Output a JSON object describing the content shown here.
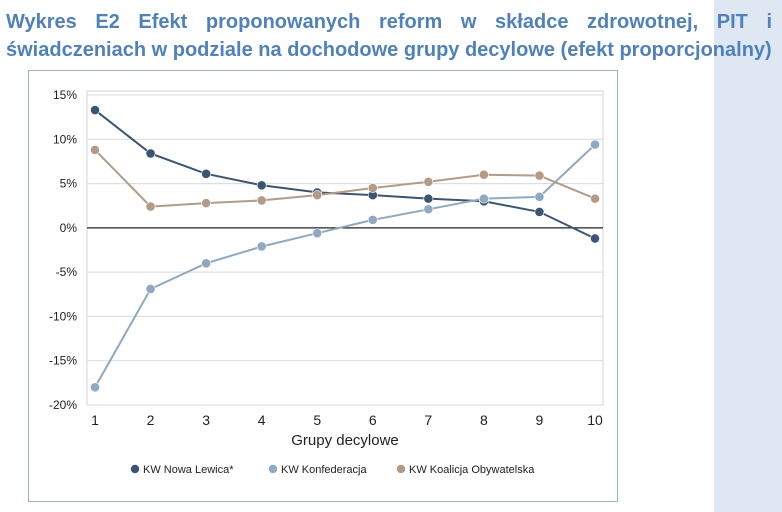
{
  "title": {
    "line1": "Wykres E2 Efekt proponowanych reform w składce zdrowotnej, PIT i",
    "line2": "świadczeniach w podziale na dochodowe grupy decylowe (efekt proporcjonalny)"
  },
  "colors": {
    "title": "#4f81bd",
    "background_band": "#dfe8f2",
    "frame_border": "#9bb1c8"
  },
  "chart_data": {
    "type": "line",
    "title": "",
    "xlabel": "Grupy decylowe",
    "ylabel": "",
    "x": [
      1,
      2,
      3,
      4,
      5,
      6,
      7,
      8,
      9,
      10
    ],
    "x_tick_labels": [
      "1",
      "2",
      "3",
      "4",
      "5",
      "6",
      "7",
      "8",
      "9",
      "10"
    ],
    "ylim": [
      -20,
      15
    ],
    "y_ticks": [
      15,
      10,
      5,
      0,
      -5,
      -10,
      -15,
      -20
    ],
    "y_tick_labels": [
      "15%",
      "10%",
      "5%",
      "0%",
      "-5%",
      "-10%",
      "-15%",
      "-20%"
    ],
    "grid": "horizontal",
    "legend_position": "bottom",
    "series": [
      {
        "name": "KW Nowa Lewica*",
        "color": "#3a5573",
        "values": [
          13.3,
          8.4,
          6.1,
          4.8,
          4.0,
          3.7,
          3.3,
          3.0,
          1.8,
          -1.2
        ]
      },
      {
        "name": "KW Konfederacja",
        "color": "#8ea9c1",
        "values": [
          -18.0,
          -6.9,
          -4.0,
          -2.1,
          -0.6,
          0.9,
          2.1,
          3.3,
          3.5,
          9.4
        ]
      },
      {
        "name": "KW Koalicja Obywatelska",
        "color": "#b39b87",
        "values": [
          8.8,
          2.4,
          2.8,
          3.1,
          3.7,
          4.5,
          5.2,
          6.0,
          5.9,
          3.3
        ]
      }
    ]
  }
}
